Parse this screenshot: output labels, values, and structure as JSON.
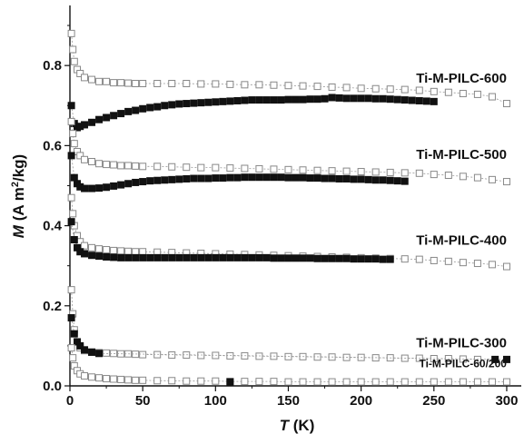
{
  "chart_data": {
    "type": "scatter",
    "xlim": [
      0,
      310
    ],
    "ylim": [
      0,
      0.95
    ],
    "x_ticks": [
      0,
      50,
      100,
      150,
      200,
      250,
      300
    ],
    "y_ticks": [
      0.0,
      0.2,
      0.4,
      0.6,
      0.8
    ],
    "x_tick_labels": [
      "0",
      "50",
      "100",
      "150",
      "200",
      "250",
      "300"
    ],
    "y_tick_labels": [
      "0.0",
      "0.2",
      "0.4",
      "0.6",
      "0.8"
    ],
    "xlabel": {
      "symbol": "T",
      "unit": " (K)"
    },
    "ylabel": {
      "symbol": "M",
      "unit_pre": " (A m",
      "unit_sup": "2",
      "unit_post": "/kg)"
    },
    "grid": false,
    "legend": "none",
    "colors": {
      "open_marker": "#888888",
      "filled_marker": "#111111",
      "line": "#9a9a9a",
      "axis": "#111111"
    },
    "series_labels": [
      {
        "id": "600",
        "text": "Ti-M-PILC-600",
        "x": 300,
        "y": 0.757
      },
      {
        "id": "500",
        "text": "Ti-M-PILC-500",
        "x": 300,
        "y": 0.567
      },
      {
        "id": "400",
        "text": "Ti-M-PILC-400",
        "x": 300,
        "y": 0.352
      },
      {
        "id": "300",
        "text": "Ti-M-PILC-300",
        "x": 300,
        "y": 0.096
      },
      {
        "id": "60200",
        "text": "Ti-M-PILC-60/200",
        "x": 300,
        "y": 0.047,
        "small": true
      }
    ],
    "series": [
      {
        "label_id": "600",
        "marker": "open",
        "x": [
          1,
          2,
          3,
          5,
          7,
          10,
          15,
          20,
          25,
          30,
          35,
          40,
          45,
          50,
          60,
          70,
          80,
          90,
          100,
          110,
          120,
          130,
          140,
          150,
          160,
          170,
          180,
          190,
          200,
          210,
          220,
          230,
          240,
          250,
          260,
          270,
          280,
          290,
          300
        ],
        "y": [
          0.88,
          0.84,
          0.81,
          0.79,
          0.78,
          0.77,
          0.765,
          0.76,
          0.76,
          0.757,
          0.757,
          0.756,
          0.755,
          0.755,
          0.755,
          0.755,
          0.755,
          0.754,
          0.754,
          0.753,
          0.752,
          0.752,
          0.751,
          0.75,
          0.749,
          0.748,
          0.746,
          0.745,
          0.743,
          0.742,
          0.741,
          0.74,
          0.738,
          0.735,
          0.733,
          0.73,
          0.728,
          0.722,
          0.705
        ]
      },
      {
        "label_id": "600",
        "marker": "filled",
        "x": [
          1,
          3,
          5,
          7,
          10,
          15,
          20,
          25,
          30,
          35,
          40,
          45,
          50,
          55,
          60,
          65,
          70,
          75,
          80,
          85,
          90,
          95,
          100,
          105,
          110,
          115,
          120,
          125,
          130,
          135,
          140,
          145,
          150,
          155,
          160,
          165,
          170,
          175,
          180,
          185,
          190,
          195,
          200,
          205,
          210,
          215,
          220,
          225,
          230,
          235,
          240,
          245,
          250
        ],
        "y": [
          0.7,
          0.655,
          0.645,
          0.648,
          0.652,
          0.658,
          0.665,
          0.67,
          0.675,
          0.68,
          0.685,
          0.688,
          0.692,
          0.695,
          0.697,
          0.7,
          0.702,
          0.704,
          0.705,
          0.706,
          0.707,
          0.708,
          0.709,
          0.71,
          0.711,
          0.712,
          0.713,
          0.714,
          0.714,
          0.714,
          0.714,
          0.714,
          0.715,
          0.715,
          0.715,
          0.716,
          0.716,
          0.717,
          0.72,
          0.719,
          0.718,
          0.718,
          0.718,
          0.718,
          0.717,
          0.717,
          0.716,
          0.715,
          0.714,
          0.713,
          0.712,
          0.711,
          0.71
        ]
      },
      {
        "label_id": "500",
        "marker": "open",
        "x": [
          1,
          2,
          3,
          5,
          7,
          10,
          15,
          20,
          25,
          30,
          35,
          40,
          45,
          50,
          60,
          70,
          80,
          90,
          100,
          110,
          120,
          130,
          140,
          150,
          160,
          170,
          180,
          190,
          200,
          210,
          220,
          230,
          240,
          250,
          260,
          270,
          280,
          290,
          300
        ],
        "y": [
          0.66,
          0.63,
          0.605,
          0.585,
          0.575,
          0.565,
          0.56,
          0.555,
          0.553,
          0.552,
          0.55,
          0.55,
          0.549,
          0.548,
          0.548,
          0.547,
          0.546,
          0.545,
          0.545,
          0.544,
          0.543,
          0.542,
          0.541,
          0.54,
          0.539,
          0.538,
          0.537,
          0.536,
          0.535,
          0.534,
          0.533,
          0.532,
          0.531,
          0.528,
          0.526,
          0.523,
          0.52,
          0.515,
          0.51
        ]
      },
      {
        "label_id": "500",
        "marker": "filled",
        "x": [
          1,
          3,
          5,
          7,
          10,
          15,
          20,
          25,
          30,
          35,
          40,
          45,
          50,
          55,
          60,
          65,
          70,
          75,
          80,
          85,
          90,
          95,
          100,
          105,
          110,
          115,
          120,
          125,
          130,
          135,
          140,
          145,
          150,
          155,
          160,
          165,
          170,
          175,
          180,
          185,
          190,
          195,
          200,
          205,
          210,
          215,
          220,
          225,
          230
        ],
        "y": [
          0.575,
          0.52,
          0.505,
          0.497,
          0.493,
          0.493,
          0.494,
          0.496,
          0.499,
          0.502,
          0.505,
          0.508,
          0.51,
          0.512,
          0.513,
          0.514,
          0.515,
          0.516,
          0.517,
          0.518,
          0.518,
          0.518,
          0.519,
          0.519,
          0.52,
          0.52,
          0.521,
          0.521,
          0.521,
          0.521,
          0.521,
          0.521,
          0.52,
          0.52,
          0.52,
          0.519,
          0.519,
          0.518,
          0.518,
          0.517,
          0.517,
          0.516,
          0.516,
          0.515,
          0.514,
          0.514,
          0.513,
          0.512,
          0.511
        ]
      },
      {
        "label_id": "400",
        "marker": "open",
        "x": [
          1,
          2,
          3,
          5,
          7,
          10,
          15,
          20,
          25,
          30,
          35,
          40,
          45,
          50,
          60,
          70,
          80,
          90,
          100,
          110,
          120,
          130,
          140,
          150,
          160,
          170,
          180,
          190,
          200,
          210,
          220,
          230,
          240,
          250,
          260,
          270,
          280,
          290,
          300
        ],
        "y": [
          0.47,
          0.43,
          0.4,
          0.375,
          0.36,
          0.35,
          0.345,
          0.342,
          0.34,
          0.338,
          0.337,
          0.336,
          0.335,
          0.335,
          0.334,
          0.333,
          0.332,
          0.331,
          0.33,
          0.329,
          0.328,
          0.327,
          0.326,
          0.325,
          0.324,
          0.323,
          0.322,
          0.321,
          0.32,
          0.319,
          0.318,
          0.317,
          0.316,
          0.313,
          0.311,
          0.308,
          0.306,
          0.303,
          0.298
        ]
      },
      {
        "label_id": "400",
        "marker": "filled",
        "x": [
          1,
          3,
          5,
          7,
          10,
          15,
          20,
          25,
          30,
          35,
          40,
          45,
          50,
          55,
          60,
          65,
          70,
          75,
          80,
          85,
          90,
          95,
          100,
          105,
          110,
          115,
          120,
          125,
          130,
          135,
          140,
          145,
          150,
          155,
          160,
          165,
          170,
          175,
          180,
          185,
          190,
          195,
          200,
          205,
          210,
          215,
          220
        ],
        "y": [
          0.41,
          0.365,
          0.345,
          0.335,
          0.33,
          0.326,
          0.324,
          0.322,
          0.321,
          0.32,
          0.32,
          0.32,
          0.32,
          0.32,
          0.32,
          0.32,
          0.32,
          0.32,
          0.32,
          0.32,
          0.32,
          0.32,
          0.32,
          0.32,
          0.32,
          0.32,
          0.32,
          0.32,
          0.32,
          0.32,
          0.319,
          0.319,
          0.319,
          0.319,
          0.319,
          0.319,
          0.318,
          0.318,
          0.318,
          0.318,
          0.318,
          0.317,
          0.317,
          0.317,
          0.317,
          0.316,
          0.316
        ]
      },
      {
        "label_id": "300",
        "marker": "open",
        "x": [
          1,
          2,
          3,
          5,
          7,
          10,
          15,
          20,
          25,
          30,
          35,
          40,
          45,
          50,
          60,
          70,
          80,
          90,
          100,
          110,
          120,
          130,
          140,
          150,
          160,
          170,
          180,
          190,
          200,
          210,
          220,
          230,
          240,
          250,
          260,
          270,
          280
        ],
        "y": [
          0.24,
          0.18,
          0.14,
          0.11,
          0.095,
          0.088,
          0.085,
          0.083,
          0.082,
          0.081,
          0.08,
          0.08,
          0.079,
          0.078,
          0.078,
          0.077,
          0.077,
          0.076,
          0.076,
          0.075,
          0.075,
          0.074,
          0.074,
          0.073,
          0.073,
          0.072,
          0.072,
          0.071,
          0.071,
          0.07,
          0.07,
          0.069,
          0.069,
          0.068,
          0.068,
          0.067,
          0.066
        ]
      },
      {
        "label_id": "300",
        "marker": "filled",
        "x": [
          1,
          3,
          5,
          7,
          10,
          15,
          20,
          292,
          300
        ],
        "y": [
          0.17,
          0.13,
          0.11,
          0.1,
          0.09,
          0.084,
          0.081,
          0.066,
          0.066
        ]
      },
      {
        "label_id": "60200",
        "marker": "open",
        "x": [
          1,
          2,
          3,
          5,
          7,
          10,
          15,
          20,
          25,
          30,
          35,
          40,
          45,
          50,
          60,
          70,
          80,
          90,
          100,
          110,
          120,
          130,
          140,
          150,
          160,
          170,
          180,
          190,
          200,
          210,
          220,
          230,
          240,
          250,
          260,
          270,
          280,
          290,
          300
        ],
        "y": [
          0.095,
          0.07,
          0.05,
          0.038,
          0.03,
          0.025,
          0.022,
          0.02,
          0.018,
          0.017,
          0.016,
          0.015,
          0.014,
          0.014,
          0.013,
          0.013,
          0.012,
          0.012,
          0.012,
          0.011,
          0.011,
          0.011,
          0.011,
          0.01,
          0.01,
          0.01,
          0.01,
          0.01,
          0.01,
          0.01,
          0.01,
          0.01,
          0.01,
          0.01,
          0.01,
          0.01,
          0.01,
          0.01,
          0.01
        ]
      },
      {
        "label_id": "60200",
        "marker": "filled",
        "x": [
          110
        ],
        "y": [
          0.01
        ]
      }
    ]
  }
}
